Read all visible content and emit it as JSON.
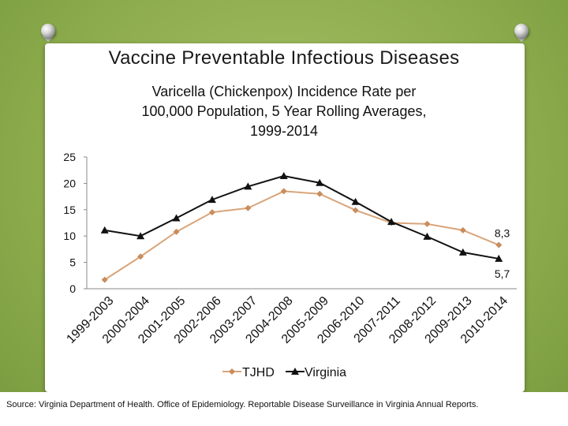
{
  "slide": {
    "title": "Vaccine Preventable Infectious Diseases",
    "source": "Source: Virginia Department of Health. Office of Epidemiology. Reportable Disease Surveillance in Virginia Annual Reports."
  },
  "colors": {
    "background": "#8fae4f",
    "tjhd": "#d9a57a",
    "tjhd_marker": "#c98c5c",
    "virginia": "#111111"
  },
  "chart_data": {
    "type": "line",
    "title": "Varicella (Chickenpox) Incidence Rate per 100,000 Population, 5 Year Rolling Averages, 1999-2014",
    "title_lines": [
      "Varicella (Chickenpox) Incidence Rate per",
      "100,000 Population, 5 Year Rolling Averages,",
      "1999-2014"
    ],
    "xlabel": "",
    "ylabel": "",
    "ylim": [
      0,
      25
    ],
    "yticks": [
      "0",
      "5",
      "10",
      "15",
      "20",
      "25"
    ],
    "categories": [
      "1999-2003",
      "2000-2004",
      "2001-2005",
      "2002-2006",
      "2003-2007",
      "2004-2008",
      "2005-2009",
      "2006-2010",
      "2007-2011",
      "2008-2012",
      "2009-2013",
      "2010-2014"
    ],
    "series": [
      {
        "name": "TJHD",
        "marker": "diamond",
        "values": [
          1.7,
          6.1,
          10.8,
          14.5,
          15.3,
          18.5,
          18.0,
          14.9,
          12.5,
          12.3,
          11.1,
          8.3
        ]
      },
      {
        "name": "Virginia",
        "marker": "triangle",
        "values": [
          11.1,
          10.0,
          13.4,
          16.9,
          19.4,
          21.4,
          20.1,
          16.5,
          12.7,
          9.9,
          6.9,
          5.7
        ]
      }
    ],
    "annotations": [
      {
        "series": "TJHD",
        "index": 11,
        "text": "8,3"
      },
      {
        "series": "Virginia",
        "index": 11,
        "text": "5,7"
      }
    ],
    "legend": [
      "TJHD",
      "Virginia"
    ],
    "legend_position": "bottom",
    "grid": false
  }
}
